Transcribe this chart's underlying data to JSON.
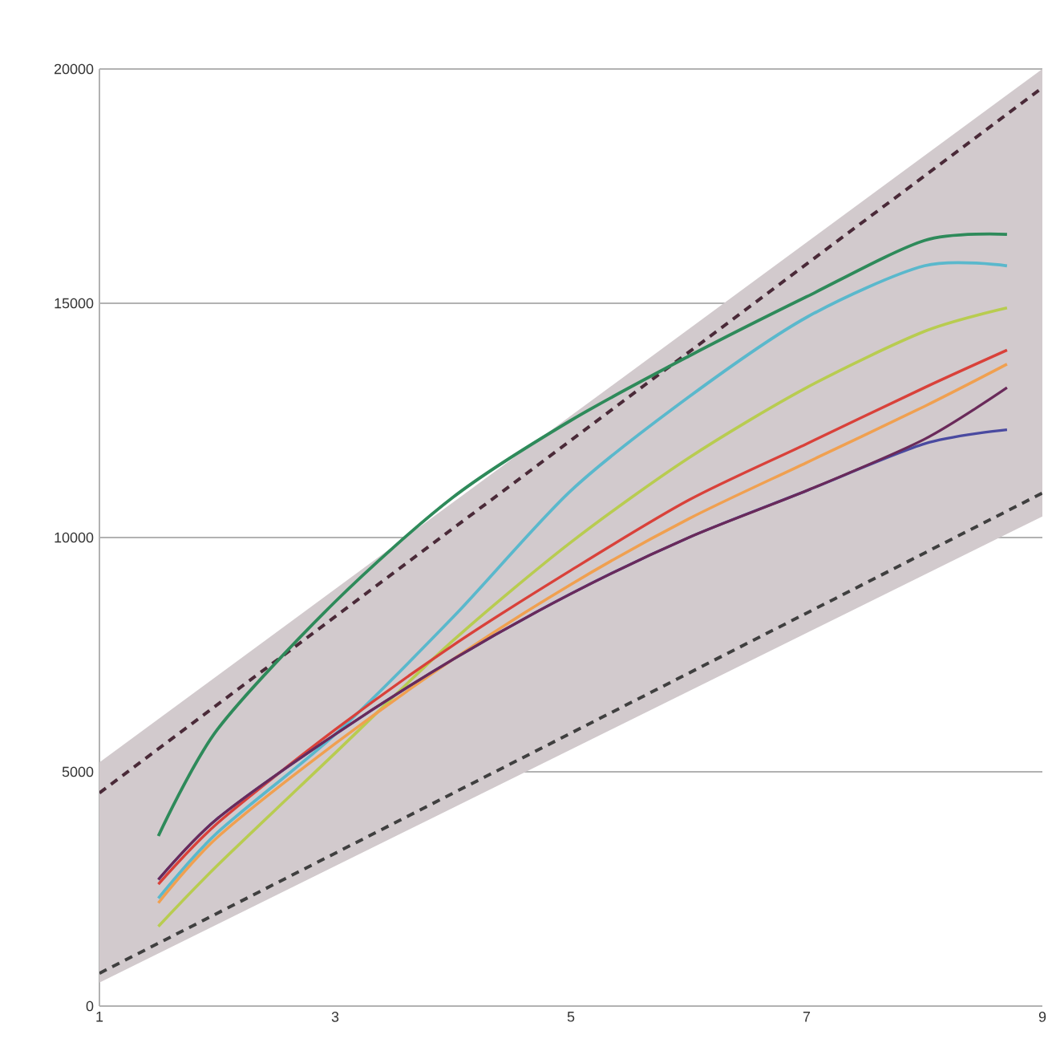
{
  "chart_data": {
    "type": "line",
    "xlim": [
      1,
      9
    ],
    "ylim": [
      0,
      20000
    ],
    "xticks": [
      1,
      3,
      5,
      7,
      9
    ],
    "yticks": [
      0,
      5000,
      10000,
      15000,
      20000
    ],
    "grid": "y",
    "series": [
      {
        "color": "#4a2a38",
        "line_style": "dashed",
        "x": [
          1,
          9
        ],
        "values": [
          4550,
          19600
        ],
        "lower": [
          500,
          10450
        ],
        "upper": [
          5200,
          20000
        ]
      },
      {
        "color": "#3f3f3f",
        "line_style": "dashed",
        "x": [
          1,
          9
        ],
        "values": [
          700,
          10950
        ]
      },
      {
        "color": "#2e8a5a",
        "x": [
          1.5,
          2,
          3,
          4,
          5,
          6,
          7,
          8,
          8.7
        ],
        "values": [
          3630,
          5900,
          8630,
          10860,
          12500,
          13870,
          15140,
          16340,
          16470
        ]
      },
      {
        "color": "#5ab8cc",
        "x": [
          1.5,
          2,
          3,
          4,
          5,
          6,
          7,
          8,
          8.7
        ],
        "values": [
          2300,
          3700,
          5800,
          8300,
          11000,
          13000,
          14700,
          15800,
          15800
        ]
      },
      {
        "color": "#b8cc50",
        "x": [
          1.5,
          2,
          3,
          4,
          5,
          6,
          7,
          8,
          8.7
        ],
        "values": [
          1700,
          3000,
          5400,
          7800,
          9900,
          11700,
          13200,
          14400,
          14900
        ]
      },
      {
        "color": "#f0a050",
        "x": [
          1.5,
          2,
          3,
          4,
          5,
          6,
          7,
          8,
          8.7
        ],
        "values": [
          2200,
          3600,
          5600,
          7400,
          9000,
          10400,
          11600,
          12800,
          13700
        ]
      },
      {
        "color": "#d9413a",
        "x": [
          1.5,
          2,
          3,
          4,
          5,
          6,
          7,
          8,
          8.7
        ],
        "values": [
          2600,
          3900,
          5900,
          7700,
          9300,
          10800,
          12000,
          13200,
          14000
        ]
      },
      {
        "color": "#4a4aa0",
        "x": [
          1.5,
          2,
          3,
          4,
          5,
          6,
          7,
          8,
          8.7
        ],
        "values": [
          2700,
          4000,
          5800,
          7400,
          8800,
          10000,
          11000,
          12000,
          12300
        ]
      },
      {
        "color": "#6a2a5a",
        "x": [
          1.5,
          2,
          3,
          4,
          5,
          6,
          7,
          8,
          8.7
        ],
        "values": [
          2700,
          4000,
          5800,
          7400,
          8800,
          10000,
          11000,
          12100,
          13200
        ]
      }
    ]
  }
}
